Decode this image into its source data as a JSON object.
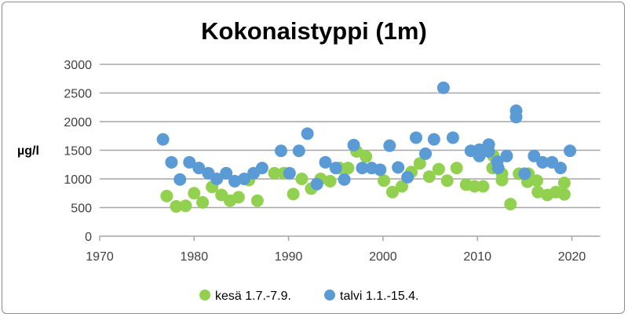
{
  "chart_data": {
    "type": "scatter",
    "title": "Kokonaistyppi (1m)",
    "xlabel": "",
    "ylabel": "µg/l",
    "xlim": [
      1970,
      2023
    ],
    "ylim": [
      0,
      3000
    ],
    "xticks": [
      1970,
      1980,
      1990,
      2000,
      2010,
      2020
    ],
    "yticks": [
      0,
      500,
      1000,
      1500,
      2000,
      2500,
      3000
    ],
    "grid": "horizontal",
    "legend_position": "bottom",
    "series": [
      {
        "name": "kesä 1.7.-7.9.",
        "color": "#92d050",
        "points": [
          [
            1977.1,
            700
          ],
          [
            1978.1,
            520
          ],
          [
            1979.1,
            530
          ],
          [
            1980.0,
            750
          ],
          [
            1980.9,
            590
          ],
          [
            1981.9,
            860
          ],
          [
            1982.9,
            720
          ],
          [
            1983.8,
            620
          ],
          [
            1984.7,
            680
          ],
          [
            1985.8,
            980
          ],
          [
            1986.7,
            620
          ],
          [
            1988.5,
            1100
          ],
          [
            1989.5,
            1100
          ],
          [
            1990.5,
            735
          ],
          [
            1991.4,
            1000
          ],
          [
            1992.4,
            830
          ],
          [
            1993.4,
            1000
          ],
          [
            1994.4,
            960
          ],
          [
            1995.4,
            1190
          ],
          [
            1996.3,
            1190
          ],
          [
            1997.2,
            1480
          ],
          [
            1998.2,
            1390
          ],
          [
            2000.1,
            970
          ],
          [
            2001.0,
            770
          ],
          [
            2002.0,
            870
          ],
          [
            2003.0,
            1120
          ],
          [
            2003.9,
            1270
          ],
          [
            2004.9,
            1040
          ],
          [
            2005.9,
            1170
          ],
          [
            2006.8,
            970
          ],
          [
            2007.8,
            1190
          ],
          [
            2008.8,
            900
          ],
          [
            2009.7,
            870
          ],
          [
            2010.6,
            870
          ],
          [
            2011.7,
            1400
          ],
          [
            2011.6,
            1190
          ],
          [
            2012.6,
            1090
          ],
          [
            2012.6,
            980
          ],
          [
            2013.5,
            560
          ],
          [
            2014.4,
            1090
          ],
          [
            2015.4,
            1090
          ],
          [
            2015.3,
            950
          ],
          [
            2016.3,
            970
          ],
          [
            2016.4,
            770
          ],
          [
            2017.4,
            720
          ],
          [
            2018.3,
            770
          ],
          [
            2019.2,
            930
          ],
          [
            2019.2,
            730
          ]
        ]
      },
      {
        "name": "talvi 1.1.-15.4.",
        "color": "#5b9bd5",
        "points": [
          [
            1976.7,
            1690
          ],
          [
            1977.6,
            1290
          ],
          [
            1978.5,
            990
          ],
          [
            1979.5,
            1290
          ],
          [
            1980.5,
            1190
          ],
          [
            1981.5,
            1100
          ],
          [
            1982.4,
            1000
          ],
          [
            1983.4,
            1100
          ],
          [
            1984.3,
            960
          ],
          [
            1985.3,
            1000
          ],
          [
            1986.3,
            1100
          ],
          [
            1987.2,
            1190
          ],
          [
            1989.2,
            1490
          ],
          [
            1990.1,
            1100
          ],
          [
            1991.1,
            1490
          ],
          [
            1992.0,
            1790
          ],
          [
            1993.0,
            910
          ],
          [
            1993.9,
            1290
          ],
          [
            1995.0,
            1190
          ],
          [
            1995.9,
            990
          ],
          [
            1996.9,
            1590
          ],
          [
            1997.8,
            1190
          ],
          [
            1998.8,
            1190
          ],
          [
            1999.7,
            1160
          ],
          [
            2000.7,
            1580
          ],
          [
            2001.6,
            1200
          ],
          [
            2002.6,
            1030
          ],
          [
            2003.5,
            1720
          ],
          [
            2004.5,
            1440
          ],
          [
            2005.4,
            1690
          ],
          [
            2006.4,
            2590
          ],
          [
            2007.4,
            1720
          ],
          [
            2009.3,
            1490
          ],
          [
            2010.2,
            1510
          ],
          [
            2010.2,
            1400
          ],
          [
            2011.2,
            1600
          ],
          [
            2011.2,
            1480
          ],
          [
            2012.1,
            1300
          ],
          [
            2012.2,
            1190
          ],
          [
            2013.1,
            1400
          ],
          [
            2014.1,
            2190
          ],
          [
            2014.1,
            2080
          ],
          [
            2015.0,
            1090
          ],
          [
            2016.0,
            1400
          ],
          [
            2016.9,
            1290
          ],
          [
            2017.9,
            1290
          ],
          [
            2018.8,
            1190
          ],
          [
            2019.8,
            1490
          ]
        ]
      }
    ]
  }
}
